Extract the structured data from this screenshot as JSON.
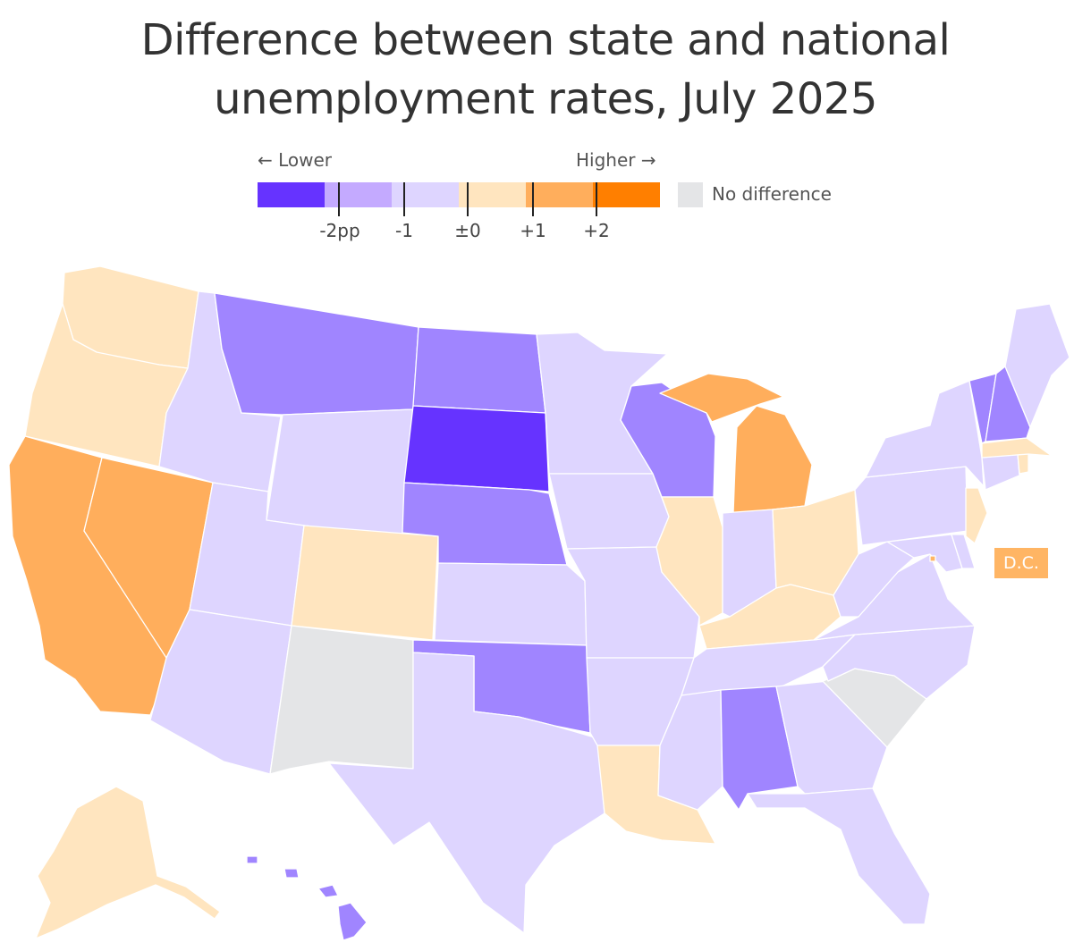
{
  "title_line1": "Difference between state and national",
  "title_line2": "unemployment rates, July 2025",
  "legend": {
    "lower_label": "← Lower",
    "higher_label": "Higher →",
    "bins": [
      "#6633ff",
      "#c4aaff",
      "#ded5ff",
      "#ffe5bf",
      "#ffae5c",
      "#ff7f00"
    ],
    "ticks": [
      "-2pp",
      "-1",
      "±0",
      "+1",
      "+2"
    ],
    "no_difference_label": "No difference",
    "no_difference_color": "#e4e5e7"
  },
  "dc_label": "D.C.",
  "dc_color": "#ffb564",
  "states": [
    {
      "name": "Washington",
      "bin": "0 to +1"
    },
    {
      "name": "Oregon",
      "bin": "0 to +1"
    },
    {
      "name": "California",
      "bin": "+1 to +2"
    },
    {
      "name": "Nevada",
      "bin": "+1 to +2"
    },
    {
      "name": "Idaho",
      "bin": "-1 to 0"
    },
    {
      "name": "Montana",
      "bin": "-2 to -1"
    },
    {
      "name": "Wyoming",
      "bin": "-1 to 0"
    },
    {
      "name": "Utah",
      "bin": "-1 to 0"
    },
    {
      "name": "Arizona",
      "bin": "-1 to 0"
    },
    {
      "name": "Colorado",
      "bin": "0 to +1"
    },
    {
      "name": "New Mexico",
      "bin": "No difference"
    },
    {
      "name": "North Dakota",
      "bin": "-2 to -1"
    },
    {
      "name": "South Dakota",
      "bin": "below -2"
    },
    {
      "name": "Nebraska",
      "bin": "-2 to -1"
    },
    {
      "name": "Kansas",
      "bin": "-1 to 0"
    },
    {
      "name": "Oklahoma",
      "bin": "-2 to -1"
    },
    {
      "name": "Texas",
      "bin": "-1 to 0"
    },
    {
      "name": "Minnesota",
      "bin": "-1 to 0"
    },
    {
      "name": "Iowa",
      "bin": "-1 to 0"
    },
    {
      "name": "Missouri",
      "bin": "-1 to 0"
    },
    {
      "name": "Arkansas",
      "bin": "-1 to 0"
    },
    {
      "name": "Louisiana",
      "bin": "0 to +1"
    },
    {
      "name": "Wisconsin",
      "bin": "-2 to -1"
    },
    {
      "name": "Illinois",
      "bin": "0 to +1"
    },
    {
      "name": "Michigan",
      "bin": "+1 to +2"
    },
    {
      "name": "Indiana",
      "bin": "-1 to 0"
    },
    {
      "name": "Ohio",
      "bin": "0 to +1"
    },
    {
      "name": "Kentucky",
      "bin": "0 to +1"
    },
    {
      "name": "Tennessee",
      "bin": "-1 to 0"
    },
    {
      "name": "Mississippi",
      "bin": "-1 to 0"
    },
    {
      "name": "Alabama",
      "bin": "-2 to -1"
    },
    {
      "name": "Georgia",
      "bin": "-1 to 0"
    },
    {
      "name": "Florida",
      "bin": "-1 to 0"
    },
    {
      "name": "South Carolina",
      "bin": "No difference"
    },
    {
      "name": "North Carolina",
      "bin": "-1 to 0"
    },
    {
      "name": "Virginia",
      "bin": "-1 to 0"
    },
    {
      "name": "West Virginia",
      "bin": "-1 to 0"
    },
    {
      "name": "Pennsylvania",
      "bin": "-1 to 0"
    },
    {
      "name": "New York",
      "bin": "-1 to 0"
    },
    {
      "name": "Vermont",
      "bin": "-2 to -1"
    },
    {
      "name": "New Hampshire",
      "bin": "-2 to -1"
    },
    {
      "name": "Maine",
      "bin": "-1 to 0"
    },
    {
      "name": "Massachusetts",
      "bin": "0 to +1"
    },
    {
      "name": "Connecticut",
      "bin": "-1 to 0"
    },
    {
      "name": "Rhode Island",
      "bin": "0 to +1"
    },
    {
      "name": "New Jersey",
      "bin": "0 to +1"
    },
    {
      "name": "Delaware",
      "bin": "-1 to 0"
    },
    {
      "name": "Maryland",
      "bin": "-1 to 0"
    },
    {
      "name": "Alaska",
      "bin": "0 to +1"
    },
    {
      "name": "Hawaii",
      "bin": "-2 to -1"
    }
  ]
}
